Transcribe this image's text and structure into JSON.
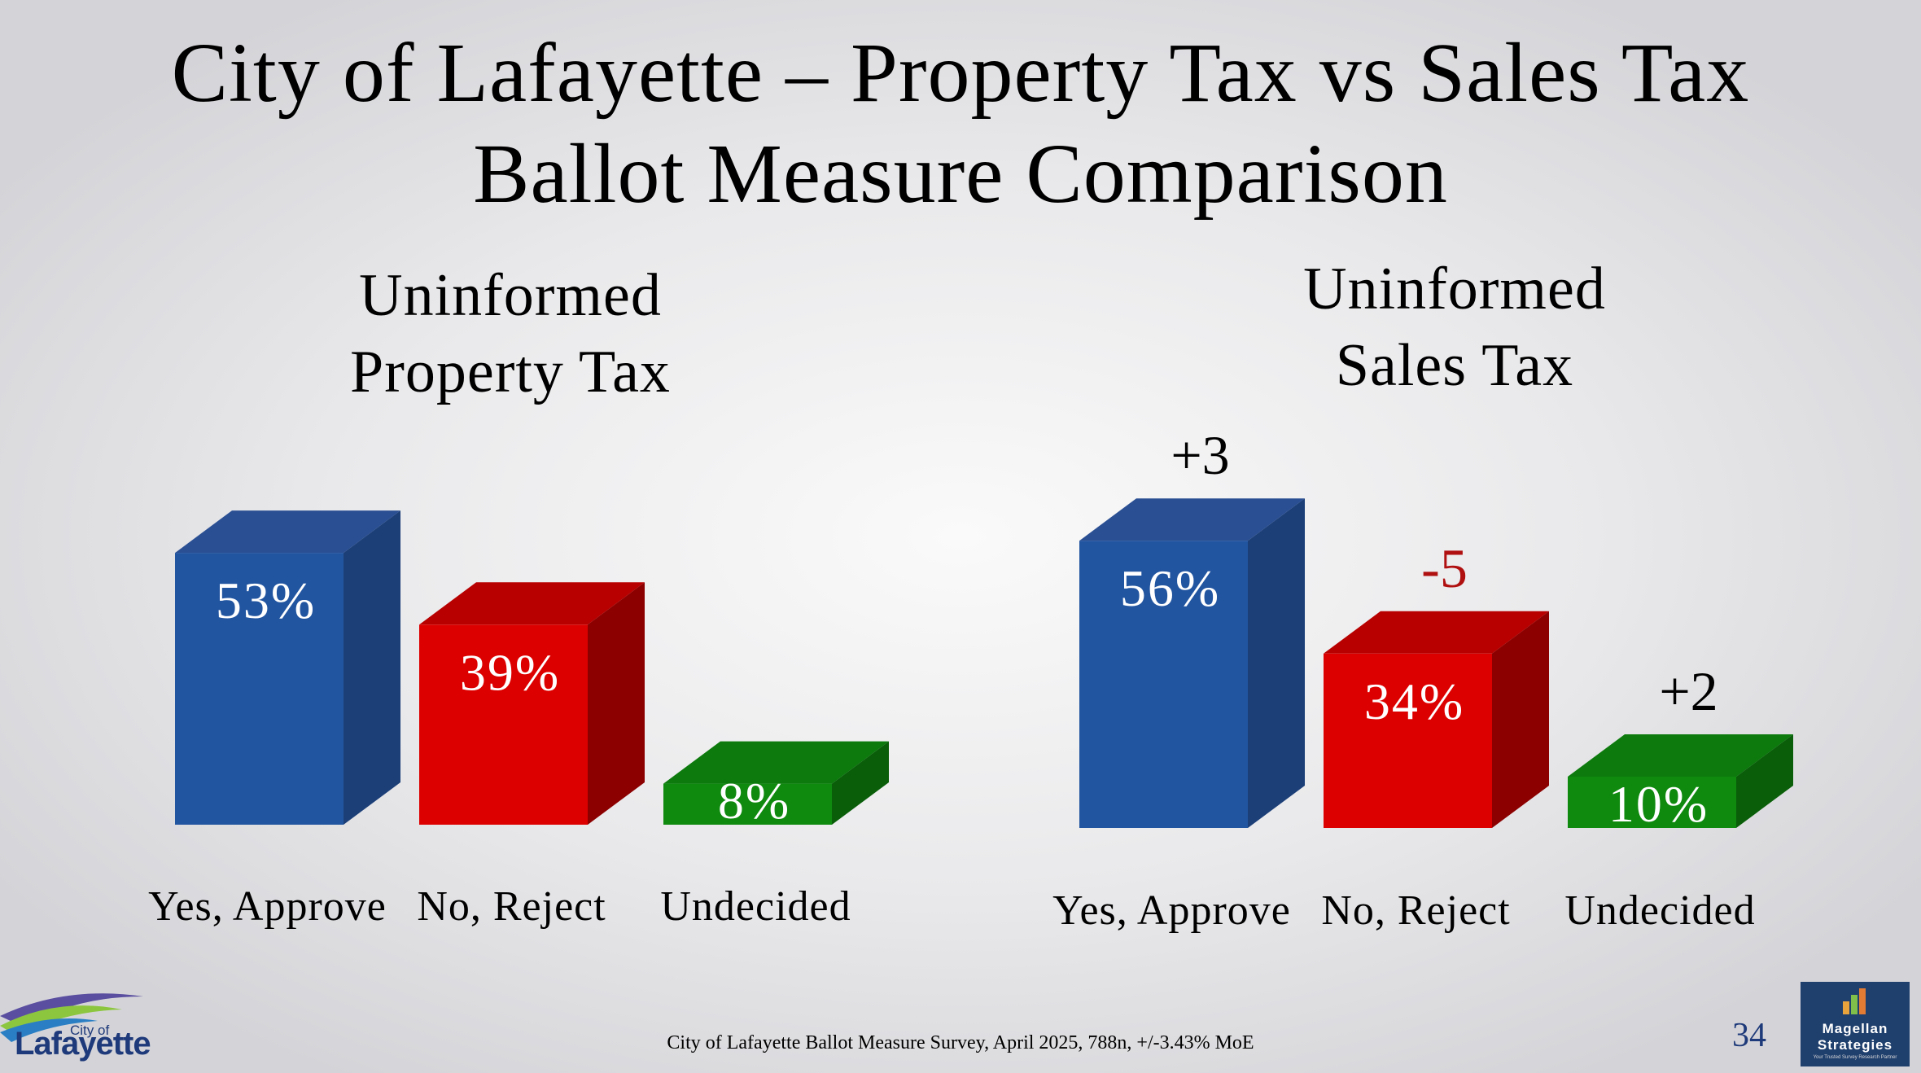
{
  "title_lines": [
    "City of Lafayette – Property Tax vs Sales Tax",
    "Ballot Measure Comparison"
  ],
  "footer": {
    "source": "City of Lafayette Ballot Measure Survey, April 2025, 788n, +/-3.43% MoE",
    "page_number": "34"
  },
  "logos": {
    "left": {
      "line1": "City of",
      "line2": "Lafayette"
    },
    "right": {
      "line1": "Magellan",
      "line2": "Strategies",
      "tagline": "Your Trusted Survey Research Partner"
    }
  },
  "colors": {
    "yes": "#2255a0",
    "no": "#dd0000",
    "undecided": "#0f8a0f",
    "negative_change": "#b01010"
  },
  "chart_data": [
    {
      "type": "bar",
      "title_lines": [
        "Uninformed",
        "Property Tax"
      ],
      "categories": [
        "Yes, Approve",
        "No, Reject",
        "Undecided"
      ],
      "values": [
        53,
        39,
        8
      ],
      "data_labels": [
        "53%",
        "39%",
        "8%"
      ],
      "ylim": [
        0,
        100
      ],
      "grid": false,
      "legend": "none"
    },
    {
      "type": "bar",
      "title_lines": [
        "Uninformed",
        "Sales Tax"
      ],
      "categories": [
        "Yes, Approve",
        "No, Reject",
        "Undecided"
      ],
      "values": [
        56,
        34,
        10
      ],
      "data_labels": [
        "56%",
        "34%",
        "10%"
      ],
      "change_labels": [
        "+3",
        "-5",
        "+2"
      ],
      "ylim": [
        0,
        100
      ],
      "grid": false,
      "legend": "none"
    }
  ]
}
